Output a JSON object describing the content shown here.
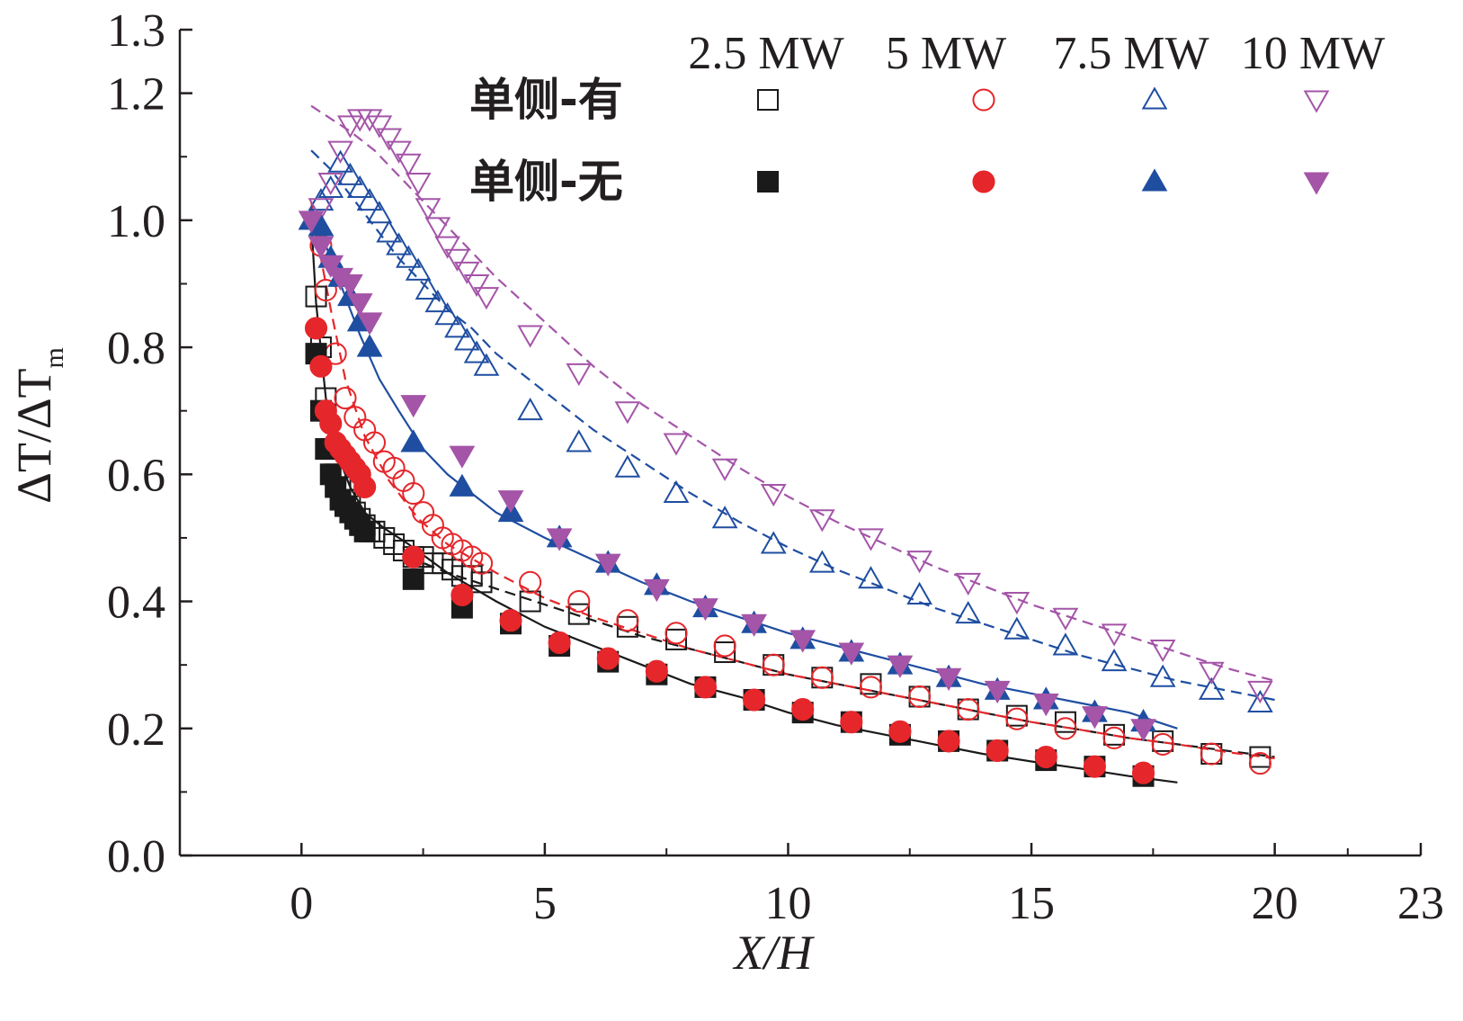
{
  "chart_data": {
    "type": "scatter",
    "title": "",
    "xlabel": "X/H",
    "ylabel": "ΔT/ΔT",
    "ylabel_sub": "m",
    "xlim": [
      -2.5,
      23
    ],
    "ylim": [
      0,
      1.3
    ],
    "x_ticks": [
      0,
      5,
      10,
      15,
      20,
      23
    ],
    "x_tick_labels": [
      "0",
      "5",
      "10",
      "15",
      "20",
      "23"
    ],
    "y_ticks": [
      0.0,
      0.2,
      0.4,
      0.6,
      0.8,
      1.0,
      1.2,
      1.3
    ],
    "y_tick_labels": [
      "0.0",
      "0.2",
      "0.4",
      "0.6",
      "0.8",
      "1.0",
      "1.2",
      "1.3"
    ],
    "legend": {
      "placement": "top-right",
      "columns": [
        "2.5 MW",
        "5 MW",
        "7.5 MW",
        "10 MW"
      ],
      "rows": [
        "单侧-有",
        "单侧-无"
      ]
    },
    "colors": {
      "2.5 MW": "#1a1a1a",
      "5 MW": "#e5262a",
      "7.5 MW": "#1f4ea1",
      "10 MW": "#a455a8"
    },
    "series": [
      {
        "name": "2.5 MW",
        "group": "单侧-有",
        "marker": "square",
        "filled": false,
        "color": "#1a1a1a",
        "x": [
          0.3,
          0.4,
          0.5,
          0.6,
          0.7,
          0.8,
          0.9,
          1.0,
          1.1,
          1.2,
          1.3,
          1.4,
          1.5,
          1.7,
          1.9,
          2.1,
          2.3,
          2.5,
          2.7,
          2.9,
          3.1,
          3.3,
          3.5,
          3.7,
          4.7,
          5.7,
          6.7,
          7.7,
          8.7,
          9.7,
          10.7,
          11.7,
          12.7,
          13.7,
          14.7,
          15.7,
          16.7,
          17.7,
          18.7,
          19.7
        ],
        "y": [
          0.88,
          0.8,
          0.72,
          0.64,
          0.6,
          0.58,
          0.56,
          0.55,
          0.54,
          0.53,
          0.52,
          0.51,
          0.51,
          0.5,
          0.49,
          0.48,
          0.47,
          0.47,
          0.46,
          0.46,
          0.45,
          0.44,
          0.44,
          0.43,
          0.4,
          0.38,
          0.36,
          0.34,
          0.32,
          0.3,
          0.28,
          0.27,
          0.25,
          0.23,
          0.22,
          0.21,
          0.19,
          0.18,
          0.16,
          0.155
        ]
      },
      {
        "name": "5 MW",
        "group": "单侧-有",
        "marker": "circle",
        "filled": false,
        "color": "#e5262a",
        "x": [
          0.4,
          0.5,
          0.7,
          0.9,
          1.1,
          1.3,
          1.5,
          1.7,
          1.9,
          2.1,
          2.3,
          2.5,
          2.7,
          2.9,
          3.1,
          3.3,
          3.5,
          3.7,
          4.7,
          5.7,
          6.7,
          7.7,
          8.7,
          9.7,
          10.7,
          11.7,
          12.7,
          13.7,
          14.7,
          15.7,
          16.7,
          17.7,
          18.7,
          19.7
        ],
        "y": [
          0.96,
          0.89,
          0.79,
          0.72,
          0.69,
          0.67,
          0.65,
          0.62,
          0.61,
          0.59,
          0.57,
          0.54,
          0.52,
          0.5,
          0.49,
          0.48,
          0.47,
          0.46,
          0.43,
          0.4,
          0.37,
          0.35,
          0.33,
          0.3,
          0.28,
          0.265,
          0.25,
          0.23,
          0.215,
          0.2,
          0.185,
          0.175,
          0.16,
          0.145
        ]
      },
      {
        "name": "7.5 MW",
        "group": "单侧-有",
        "marker": "triangle-up",
        "filled": false,
        "color": "#1f4ea1",
        "x": [
          0.2,
          0.4,
          0.6,
          0.8,
          1.0,
          1.2,
          1.4,
          1.6,
          1.8,
          2.0,
          2.2,
          2.4,
          2.6,
          2.8,
          3.0,
          3.2,
          3.4,
          3.6,
          3.8,
          4.7,
          5.7,
          6.7,
          7.7,
          8.7,
          9.7,
          10.7,
          11.7,
          12.7,
          13.7,
          14.7,
          15.7,
          16.7,
          17.7,
          18.7,
          19.7
        ],
        "y": [
          1.0,
          1.03,
          1.05,
          1.09,
          1.07,
          1.05,
          1.03,
          1.01,
          0.98,
          0.96,
          0.94,
          0.92,
          0.89,
          0.87,
          0.85,
          0.83,
          0.81,
          0.79,
          0.77,
          0.7,
          0.65,
          0.61,
          0.57,
          0.53,
          0.49,
          0.46,
          0.435,
          0.41,
          0.38,
          0.355,
          0.33,
          0.305,
          0.28,
          0.26,
          0.24
        ]
      },
      {
        "name": "10 MW",
        "group": "单侧-有",
        "marker": "triangle-down",
        "filled": false,
        "color": "#a455a8",
        "x": [
          0.4,
          0.6,
          0.8,
          1.0,
          1.2,
          1.4,
          1.6,
          1.8,
          2.0,
          2.2,
          2.4,
          2.6,
          2.8,
          3.0,
          3.2,
          3.4,
          3.6,
          3.8,
          4.7,
          5.7,
          6.7,
          7.7,
          8.7,
          9.7,
          10.7,
          11.7,
          12.7,
          13.7,
          14.7,
          15.7,
          16.7,
          17.7,
          18.7,
          19.7
        ],
        "y": [
          1.02,
          1.06,
          1.11,
          1.15,
          1.16,
          1.16,
          1.15,
          1.13,
          1.11,
          1.09,
          1.06,
          1.02,
          0.99,
          0.96,
          0.94,
          0.92,
          0.9,
          0.88,
          0.82,
          0.76,
          0.7,
          0.65,
          0.61,
          0.57,
          0.53,
          0.5,
          0.465,
          0.43,
          0.4,
          0.375,
          0.35,
          0.325,
          0.29,
          0.26
        ]
      },
      {
        "name": "2.5 MW",
        "group": "单侧-无",
        "marker": "square",
        "filled": true,
        "color": "#1a1a1a",
        "x": [
          0.3,
          0.4,
          0.5,
          0.6,
          0.7,
          0.8,
          0.9,
          1.0,
          1.1,
          1.2,
          1.3,
          2.3,
          3.3,
          4.3,
          5.3,
          6.3,
          7.3,
          8.3,
          9.3,
          10.3,
          11.3,
          12.3,
          13.3,
          14.3,
          15.3,
          16.3,
          17.3
        ],
        "y": [
          0.79,
          0.7,
          0.64,
          0.6,
          0.58,
          0.56,
          0.55,
          0.54,
          0.53,
          0.52,
          0.51,
          0.435,
          0.39,
          0.365,
          0.33,
          0.305,
          0.285,
          0.265,
          0.245,
          0.225,
          0.21,
          0.19,
          0.18,
          0.165,
          0.15,
          0.14,
          0.125
        ]
      },
      {
        "name": "5 MW",
        "group": "单侧-无",
        "marker": "circle",
        "filled": true,
        "color": "#e5262a",
        "x": [
          0.3,
          0.4,
          0.5,
          0.6,
          0.7,
          0.8,
          0.9,
          1.0,
          1.1,
          1.2,
          1.3,
          2.3,
          3.3,
          4.3,
          5.3,
          6.3,
          7.3,
          8.3,
          9.3,
          10.3,
          11.3,
          12.3,
          13.3,
          14.3,
          15.3,
          16.3,
          17.3
        ],
        "y": [
          0.83,
          0.77,
          0.7,
          0.68,
          0.65,
          0.64,
          0.63,
          0.62,
          0.61,
          0.6,
          0.58,
          0.47,
          0.41,
          0.37,
          0.335,
          0.31,
          0.29,
          0.265,
          0.245,
          0.23,
          0.21,
          0.195,
          0.18,
          0.165,
          0.155,
          0.14,
          0.13
        ]
      },
      {
        "name": "7.5 MW",
        "group": "单侧-无",
        "marker": "triangle-up",
        "filled": true,
        "color": "#1f4ea1",
        "x": [
          0.2,
          0.4,
          0.6,
          0.8,
          1.0,
          1.2,
          1.4,
          2.3,
          3.3,
          4.3,
          5.3,
          6.3,
          7.3,
          8.3,
          9.3,
          10.3,
          11.3,
          12.3,
          13.3,
          14.3,
          15.3,
          16.3,
          17.3
        ],
        "y": [
          1.0,
          0.99,
          0.94,
          0.91,
          0.88,
          0.84,
          0.8,
          0.65,
          0.58,
          0.54,
          0.5,
          0.46,
          0.425,
          0.39,
          0.365,
          0.34,
          0.32,
          0.3,
          0.28,
          0.26,
          0.245,
          0.225,
          0.21
        ]
      },
      {
        "name": "10 MW",
        "group": "单侧-无",
        "marker": "triangle-down",
        "filled": true,
        "color": "#a455a8",
        "x": [
          0.2,
          0.4,
          0.6,
          0.8,
          1.0,
          1.2,
          1.4,
          2.3,
          3.3,
          4.3,
          5.3,
          6.3,
          7.3,
          8.3,
          9.3,
          10.3,
          11.3,
          12.3,
          13.3,
          14.3,
          15.3,
          16.3,
          17.3
        ],
        "y": [
          1.0,
          0.96,
          0.93,
          0.91,
          0.9,
          0.87,
          0.84,
          0.71,
          0.63,
          0.56,
          0.5,
          0.46,
          0.42,
          0.39,
          0.365,
          0.34,
          0.32,
          0.3,
          0.28,
          0.26,
          0.24,
          0.22,
          0.2
        ]
      }
    ],
    "fit_curves": [
      {
        "color": "#1a1a1a",
        "style": "solid",
        "x": [
          0.2,
          0.3,
          0.5,
          0.7,
          1.0,
          1.3,
          1.7,
          2.2,
          3,
          4,
          5,
          6,
          7,
          8,
          9,
          10,
          11,
          12,
          13,
          14,
          15,
          16,
          17,
          18
        ],
        "y": [
          1.0,
          0.87,
          0.72,
          0.64,
          0.58,
          0.54,
          0.515,
          0.49,
          0.445,
          0.4,
          0.36,
          0.33,
          0.3,
          0.27,
          0.25,
          0.225,
          0.205,
          0.19,
          0.175,
          0.16,
          0.148,
          0.137,
          0.125,
          0.115
        ]
      },
      {
        "color": "#1a1a1a",
        "style": "dashed",
        "x": [
          2.2,
          3,
          4,
          5,
          6,
          7,
          8,
          9,
          10,
          11,
          12,
          13,
          14,
          15,
          16,
          17,
          18,
          19,
          20
        ],
        "y": [
          0.47,
          0.445,
          0.42,
          0.395,
          0.37,
          0.345,
          0.325,
          0.305,
          0.285,
          0.27,
          0.255,
          0.24,
          0.225,
          0.21,
          0.198,
          0.185,
          0.175,
          0.165,
          0.155
        ]
      },
      {
        "color": "#e5262a",
        "style": "dashed",
        "x": [
          0.2,
          0.4,
          0.6,
          0.9,
          1.3,
          1.8,
          2.4,
          3,
          4,
          5,
          6,
          7,
          8,
          9,
          10,
          11,
          12,
          13,
          14,
          15,
          16,
          17,
          18,
          19,
          20
        ],
        "y": [
          1.03,
          0.94,
          0.86,
          0.75,
          0.66,
          0.59,
          0.53,
          0.49,
          0.445,
          0.405,
          0.375,
          0.35,
          0.325,
          0.305,
          0.285,
          0.27,
          0.255,
          0.24,
          0.225,
          0.21,
          0.198,
          0.185,
          0.175,
          0.163,
          0.153
        ]
      },
      {
        "color": "#1f4ea1",
        "style": "solid",
        "x": [
          0.2,
          0.5,
          0.8,
          1.2,
          1.6,
          2.0,
          2.5,
          3,
          4,
          5,
          6,
          7,
          8,
          9,
          10,
          11,
          12,
          13,
          14,
          15,
          16,
          17,
          18
        ],
        "y": [
          1.0,
          0.96,
          0.9,
          0.82,
          0.75,
          0.7,
          0.64,
          0.6,
          0.54,
          0.5,
          0.465,
          0.43,
          0.4,
          0.375,
          0.35,
          0.33,
          0.31,
          0.29,
          0.27,
          0.255,
          0.24,
          0.225,
          0.2
        ]
      },
      {
        "color": "#1f4ea1",
        "style": "dashed",
        "x": [
          0.2,
          0.6,
          1.0,
          1.5,
          2.0,
          2.5,
          3,
          3.5,
          4,
          5,
          6,
          7,
          8,
          9,
          10,
          11,
          12,
          13,
          14,
          15,
          16,
          17,
          18,
          19,
          20
        ],
        "y": [
          1.11,
          1.08,
          1.04,
          0.99,
          0.94,
          0.9,
          0.86,
          0.83,
          0.79,
          0.73,
          0.67,
          0.62,
          0.57,
          0.525,
          0.485,
          0.45,
          0.42,
          0.39,
          0.365,
          0.34,
          0.315,
          0.295,
          0.275,
          0.26,
          0.245
        ]
      },
      {
        "color": "#a455a8",
        "style": "dashed",
        "x": [
          0.2,
          0.6,
          1.0,
          1.5,
          2.0,
          2.5,
          3,
          3.5,
          4,
          5,
          6,
          7,
          8,
          9,
          10,
          11,
          12,
          13,
          14,
          15,
          16,
          17,
          18,
          19,
          20
        ],
        "y": [
          1.18,
          1.16,
          1.14,
          1.11,
          1.07,
          1.03,
          0.99,
          0.95,
          0.91,
          0.84,
          0.77,
          0.71,
          0.66,
          0.61,
          0.565,
          0.525,
          0.49,
          0.455,
          0.425,
          0.395,
          0.37,
          0.345,
          0.32,
          0.295,
          0.275
        ]
      }
    ]
  }
}
